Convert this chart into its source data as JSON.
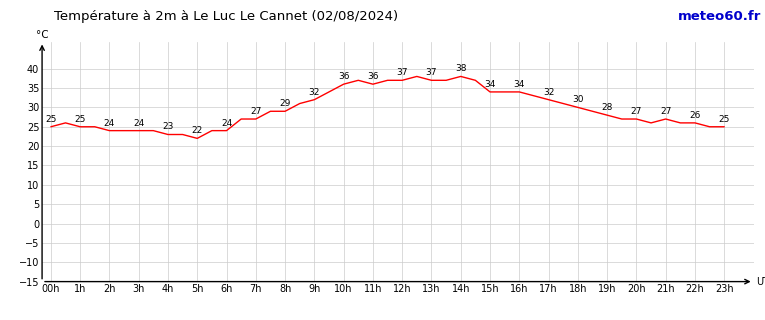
{
  "title": "Température à 2m à Le Luc Le Cannet (02/08/2024)",
  "ylabel": "°C",
  "xlabel_right": "UTC",
  "watermark": "meteo60.fr",
  "temperatures": [
    25,
    26,
    25,
    25,
    24,
    24,
    24,
    24,
    23,
    23,
    22,
    24,
    24,
    27,
    27,
    29,
    29,
    31,
    32,
    34,
    36,
    37,
    36,
    37,
    37,
    38,
    37,
    37,
    38,
    37,
    34,
    34,
    34,
    33,
    32,
    31,
    30,
    29,
    28,
    27,
    27,
    26,
    27,
    26,
    26,
    25,
    25
  ],
  "hours": [
    "00h",
    "1h",
    "2h",
    "3h",
    "4h",
    "5h",
    "6h",
    "7h",
    "8h",
    "9h",
    "10h",
    "11h",
    "12h",
    "13h",
    "14h",
    "15h",
    "16h",
    "17h",
    "18h",
    "19h",
    "20h",
    "21h",
    "22h",
    "23h"
  ],
  "ylim": [
    -15,
    47
  ],
  "yticks": [
    -15,
    -10,
    -5,
    0,
    5,
    10,
    15,
    20,
    25,
    30,
    35,
    40
  ],
  "line_color": "#ff0000",
  "bg_color": "#ffffff",
  "grid_color": "#cccccc",
  "title_color": "#000000",
  "watermark_color": "#0000cc",
  "title_fontsize": 9.5,
  "tick_fontsize": 7,
  "annot_fontsize": 6.5
}
